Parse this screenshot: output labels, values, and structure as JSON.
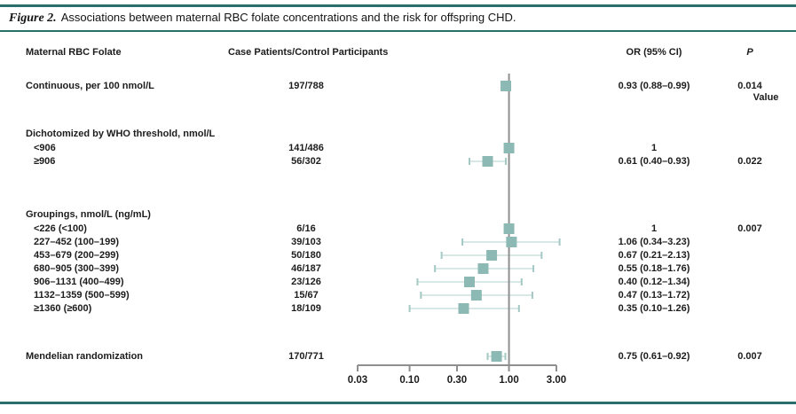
{
  "header": {
    "figure_label": "Figure 2.",
    "title": "Associations between maternal RBC folate concentrations and the risk for offspring CHD."
  },
  "columns": {
    "folate": "Maternal RBC Folate",
    "cases": "Case Patients/Control Participants",
    "or": "OR (95% CI)",
    "p_italic": "P",
    "p_rest": " Value"
  },
  "colors": {
    "accent_teal": "#2a6f6b",
    "marker_square": "#8db9b5",
    "ci_line": "#d7e8e6",
    "ci_cap": "#a4c8c4",
    "axis_grey": "#8f8f8f",
    "text": "#1c1c1c"
  },
  "chart_data": {
    "type": "forest",
    "x_axis": {
      "scale": "log",
      "ticks": [
        0.03,
        0.1,
        0.3,
        1.0,
        3.0
      ],
      "tick_labels": [
        "0.03",
        "0.10",
        "0.30",
        "1.00",
        "3.00"
      ],
      "reference_line": 1.0
    },
    "rows": [
      {
        "id": "continuous",
        "label": "Continuous, per 100 nmol/L",
        "indent": false,
        "cases": "197/788",
        "or_text": "0.93 (0.88–0.99)",
        "p": "0.014",
        "or": 0.93,
        "lo": 0.88,
        "hi": 0.99
      },
      {
        "id": "dichotomized-header",
        "label": "Dichotomized by WHO threshold, nmol/L",
        "header": true
      },
      {
        "id": "lt906",
        "label": "<906",
        "indent": true,
        "cases": "141/486",
        "or_text": "1",
        "ref": true,
        "or": 1.0
      },
      {
        "id": "ge906",
        "label": "≥906",
        "indent": true,
        "cases": "56/302",
        "or_text": "0.61 (0.40–0.93)",
        "p": "0.022",
        "or": 0.61,
        "lo": 0.4,
        "hi": 0.93
      },
      {
        "id": "groupings-header",
        "label": "Groupings, nmol/L (ng/mL)",
        "header": true
      },
      {
        "id": "grp-lt226",
        "label": "<226 (<100)",
        "indent": true,
        "cases": "6/16",
        "or_text": "1",
        "p": "0.007",
        "ref": true,
        "or": 1.0
      },
      {
        "id": "grp-227-452",
        "label": "227–452 (100–199)",
        "indent": true,
        "cases": "39/103",
        "or_text": "1.06 (0.34–3.23)",
        "or": 1.06,
        "lo": 0.34,
        "hi": 3.23
      },
      {
        "id": "grp-453-679",
        "label": "453–679 (200–299)",
        "indent": true,
        "cases": "50/180",
        "or_text": "0.67 (0.21–2.13)",
        "or": 0.67,
        "lo": 0.21,
        "hi": 2.13
      },
      {
        "id": "grp-680-905",
        "label": "680–905 (300–399)",
        "indent": true,
        "cases": "46/187",
        "or_text": "0.55 (0.18–1.76)",
        "or": 0.55,
        "lo": 0.18,
        "hi": 1.76
      },
      {
        "id": "grp-906-1131",
        "label": "906–1131 (400–499)",
        "indent": true,
        "cases": "23/126",
        "or_text": "0.40 (0.12–1.34)",
        "or": 0.4,
        "lo": 0.12,
        "hi": 1.34
      },
      {
        "id": "grp-1132-1359",
        "label": "1132–1359 (500–599)",
        "indent": true,
        "cases": "15/67",
        "or_text": "0.47 (0.13–1.72)",
        "or": 0.47,
        "lo": 0.13,
        "hi": 1.72
      },
      {
        "id": "grp-ge1360",
        "label": "≥1360 (≥600)",
        "indent": true,
        "cases": "18/109",
        "or_text": "0.35 (0.10–1.26)",
        "or": 0.35,
        "lo": 0.1,
        "hi": 1.26
      },
      {
        "id": "mendelian",
        "label": "Mendelian randomization",
        "indent": false,
        "cases": "170/771",
        "or_text": "0.75 (0.61–0.92)",
        "p": "0.007",
        "or": 0.75,
        "lo": 0.61,
        "hi": 0.92
      }
    ]
  }
}
